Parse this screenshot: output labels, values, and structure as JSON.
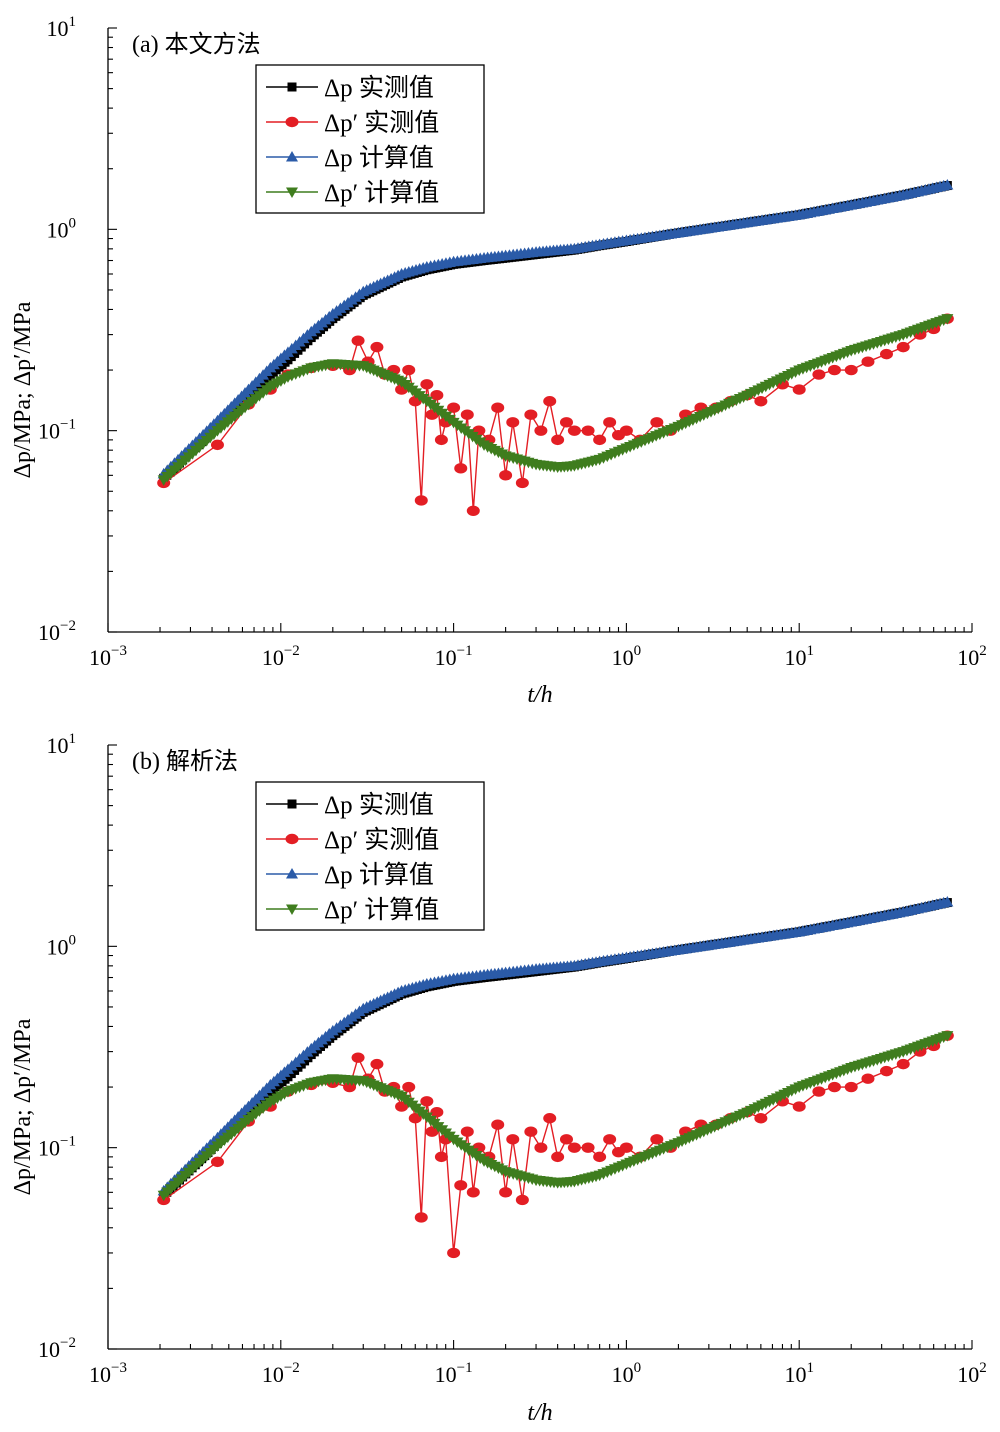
{
  "chart_data": [
    {
      "type": "line",
      "panel_label": "(a) 本文方法",
      "xlabel": "t/h",
      "ylabel": "Δp/MPa; Δp′/MPa",
      "x_scale": "log",
      "y_scale": "log",
      "xlim": [
        0.001,
        100
      ],
      "ylim": [
        0.01,
        10
      ],
      "x_tick_labels": [
        {
          "base": "10",
          "exp": "−3"
        },
        {
          "base": "10",
          "exp": "−2"
        },
        {
          "base": "10",
          "exp": "−1"
        },
        {
          "base": "10",
          "exp": "0"
        },
        {
          "base": "10",
          "exp": "1"
        },
        {
          "base": "10",
          "exp": "2"
        }
      ],
      "y_tick_labels": [
        {
          "base": "10",
          "exp": "−2"
        },
        {
          "base": "10",
          "exp": "−1"
        },
        {
          "base": "10",
          "exp": "0"
        },
        {
          "base": "10",
          "exp": "1"
        }
      ],
      "legend_position": "top-left",
      "series": [
        {
          "name": "Δp 实测值",
          "color": "#000000",
          "marker": "square",
          "x": [
            0.0021,
            0.0043,
            0.0065,
            0.0087,
            0.011,
            0.015,
            0.02,
            0.03,
            0.05,
            0.07,
            0.1,
            0.15,
            0.2,
            0.3,
            0.5,
            0.7,
            1,
            2,
            5,
            10,
            20,
            40,
            72
          ],
          "y": [
            0.058,
            0.105,
            0.148,
            0.19,
            0.225,
            0.29,
            0.36,
            0.47,
            0.58,
            0.63,
            0.67,
            0.7,
            0.72,
            0.75,
            0.79,
            0.83,
            0.87,
            0.96,
            1.08,
            1.18,
            1.32,
            1.48,
            1.65
          ]
        },
        {
          "name": "Δp′ 实测值",
          "color": "#e31e24",
          "marker": "circle",
          "x": [
            0.0021,
            0.0043,
            0.0065,
            0.0087,
            0.011,
            0.015,
            0.02,
            0.025,
            0.028,
            0.032,
            0.036,
            0.04,
            0.045,
            0.05,
            0.055,
            0.06,
            0.065,
            0.07,
            0.075,
            0.08,
            0.085,
            0.09,
            0.1,
            0.11,
            0.12,
            0.13,
            0.14,
            0.16,
            0.18,
            0.2,
            0.22,
            0.25,
            0.28,
            0.32,
            0.36,
            0.4,
            0.45,
            0.5,
            0.6,
            0.7,
            0.8,
            0.9,
            1.0,
            1.2,
            1.5,
            1.8,
            2.2,
            2.7,
            3.3,
            4,
            5,
            6,
            8,
            10,
            13,
            16,
            20,
            25,
            32,
            40,
            50,
            60,
            72
          ],
          "y": [
            0.055,
            0.085,
            0.135,
            0.16,
            0.19,
            0.205,
            0.21,
            0.2,
            0.28,
            0.22,
            0.26,
            0.19,
            0.2,
            0.16,
            0.2,
            0.14,
            0.045,
            0.17,
            0.12,
            0.15,
            0.09,
            0.11,
            0.13,
            0.065,
            0.12,
            0.04,
            0.1,
            0.09,
            0.13,
            0.06,
            0.11,
            0.055,
            0.12,
            0.1,
            0.14,
            0.09,
            0.11,
            0.1,
            0.1,
            0.09,
            0.11,
            0.095,
            0.1,
            0.09,
            0.11,
            0.1,
            0.12,
            0.13,
            0.13,
            0.14,
            0.15,
            0.14,
            0.17,
            0.16,
            0.19,
            0.2,
            0.2,
            0.22,
            0.24,
            0.26,
            0.3,
            0.32,
            0.36
          ]
        },
        {
          "name": "Δp 计算值",
          "color": "#2b5ba8",
          "marker": "triangle-up",
          "x": [
            0.0021,
            0.0043,
            0.0065,
            0.0087,
            0.011,
            0.015,
            0.02,
            0.03,
            0.05,
            0.07,
            0.1,
            0.15,
            0.2,
            0.3,
            0.5,
            0.7,
            1,
            2,
            5,
            10,
            20,
            40,
            72
          ],
          "y": [
            0.061,
            0.112,
            0.16,
            0.205,
            0.245,
            0.31,
            0.38,
            0.49,
            0.6,
            0.65,
            0.69,
            0.72,
            0.74,
            0.77,
            0.8,
            0.84,
            0.88,
            0.96,
            1.08,
            1.18,
            1.32,
            1.48,
            1.66
          ]
        },
        {
          "name": "Δp′ 计算值",
          "color": "#3f7d1e",
          "marker": "triangle-down",
          "x": [
            0.0021,
            0.0043,
            0.0065,
            0.0087,
            0.011,
            0.015,
            0.02,
            0.03,
            0.05,
            0.07,
            0.1,
            0.15,
            0.2,
            0.3,
            0.4,
            0.5,
            0.7,
            1,
            2,
            5,
            10,
            20,
            40,
            72
          ],
          "y": [
            0.057,
            0.1,
            0.135,
            0.165,
            0.185,
            0.205,
            0.215,
            0.21,
            0.175,
            0.14,
            0.11,
            0.085,
            0.075,
            0.068,
            0.066,
            0.067,
            0.072,
            0.082,
            0.105,
            0.15,
            0.2,
            0.25,
            0.3,
            0.36
          ]
        }
      ]
    },
    {
      "type": "line",
      "panel_label": "(b) 解析法",
      "xlabel": "t/h",
      "ylabel": "Δp/MPa; Δp′/MPa",
      "x_scale": "log",
      "y_scale": "log",
      "xlim": [
        0.001,
        100
      ],
      "ylim": [
        0.01,
        10
      ],
      "x_tick_labels": [
        {
          "base": "10",
          "exp": "−3"
        },
        {
          "base": "10",
          "exp": "−2"
        },
        {
          "base": "10",
          "exp": "−1"
        },
        {
          "base": "10",
          "exp": "0"
        },
        {
          "base": "10",
          "exp": "1"
        },
        {
          "base": "10",
          "exp": "2"
        }
      ],
      "y_tick_labels": [
        {
          "base": "10",
          "exp": "−2"
        },
        {
          "base": "10",
          "exp": "−1"
        },
        {
          "base": "10",
          "exp": "0"
        },
        {
          "base": "10",
          "exp": "1"
        }
      ],
      "legend_position": "top-left",
      "series": [
        {
          "name": "Δp 实测值",
          "color": "#000000",
          "marker": "square",
          "x": [
            0.0021,
            0.0043,
            0.0065,
            0.0087,
            0.011,
            0.015,
            0.02,
            0.03,
            0.05,
            0.07,
            0.1,
            0.15,
            0.2,
            0.3,
            0.5,
            0.7,
            1,
            2,
            5,
            10,
            20,
            40,
            72
          ],
          "y": [
            0.058,
            0.105,
            0.148,
            0.19,
            0.225,
            0.29,
            0.36,
            0.47,
            0.58,
            0.63,
            0.67,
            0.7,
            0.72,
            0.75,
            0.79,
            0.83,
            0.87,
            0.96,
            1.08,
            1.18,
            1.32,
            1.48,
            1.65
          ]
        },
        {
          "name": "Δp′ 实测值",
          "color": "#e31e24",
          "marker": "circle",
          "x": [
            0.0021,
            0.0043,
            0.0065,
            0.0087,
            0.011,
            0.015,
            0.02,
            0.025,
            0.028,
            0.032,
            0.036,
            0.04,
            0.045,
            0.05,
            0.055,
            0.06,
            0.065,
            0.07,
            0.075,
            0.08,
            0.085,
            0.09,
            0.1,
            0.11,
            0.12,
            0.13,
            0.14,
            0.16,
            0.18,
            0.2,
            0.22,
            0.25,
            0.28,
            0.32,
            0.36,
            0.4,
            0.45,
            0.5,
            0.6,
            0.7,
            0.8,
            0.9,
            1.0,
            1.2,
            1.5,
            1.8,
            2.2,
            2.7,
            3.3,
            4,
            5,
            6,
            8,
            10,
            13,
            16,
            20,
            25,
            32,
            40,
            50,
            60,
            72
          ],
          "y": [
            0.055,
            0.085,
            0.135,
            0.16,
            0.19,
            0.205,
            0.21,
            0.2,
            0.28,
            0.22,
            0.26,
            0.19,
            0.2,
            0.16,
            0.2,
            0.14,
            0.045,
            0.17,
            0.12,
            0.15,
            0.09,
            0.11,
            0.03,
            0.065,
            0.12,
            0.06,
            0.1,
            0.09,
            0.13,
            0.06,
            0.11,
            0.055,
            0.12,
            0.1,
            0.14,
            0.09,
            0.11,
            0.1,
            0.1,
            0.09,
            0.11,
            0.095,
            0.1,
            0.09,
            0.11,
            0.1,
            0.12,
            0.13,
            0.13,
            0.14,
            0.15,
            0.14,
            0.17,
            0.16,
            0.19,
            0.2,
            0.2,
            0.22,
            0.24,
            0.26,
            0.3,
            0.32,
            0.36
          ]
        },
        {
          "name": "Δp 计算值",
          "color": "#2b5ba8",
          "marker": "triangle-up",
          "x": [
            0.0021,
            0.0043,
            0.0065,
            0.0087,
            0.011,
            0.015,
            0.02,
            0.03,
            0.05,
            0.07,
            0.1,
            0.15,
            0.2,
            0.3,
            0.5,
            0.7,
            1,
            2,
            5,
            10,
            20,
            40,
            72
          ],
          "y": [
            0.061,
            0.112,
            0.16,
            0.205,
            0.245,
            0.31,
            0.38,
            0.49,
            0.6,
            0.65,
            0.69,
            0.72,
            0.74,
            0.77,
            0.8,
            0.84,
            0.88,
            0.96,
            1.08,
            1.18,
            1.32,
            1.48,
            1.66
          ]
        },
        {
          "name": "Δp′ 计算值",
          "color": "#3f7d1e",
          "marker": "triangle-down",
          "x": [
            0.0021,
            0.0043,
            0.0065,
            0.0087,
            0.011,
            0.015,
            0.02,
            0.03,
            0.05,
            0.07,
            0.1,
            0.15,
            0.2,
            0.3,
            0.4,
            0.5,
            0.7,
            1,
            2,
            5,
            10,
            20,
            40,
            72
          ],
          "y": [
            0.058,
            0.102,
            0.138,
            0.168,
            0.19,
            0.21,
            0.22,
            0.215,
            0.18,
            0.142,
            0.11,
            0.086,
            0.076,
            0.069,
            0.067,
            0.068,
            0.073,
            0.083,
            0.106,
            0.15,
            0.2,
            0.25,
            0.3,
            0.36
          ]
        }
      ]
    }
  ]
}
